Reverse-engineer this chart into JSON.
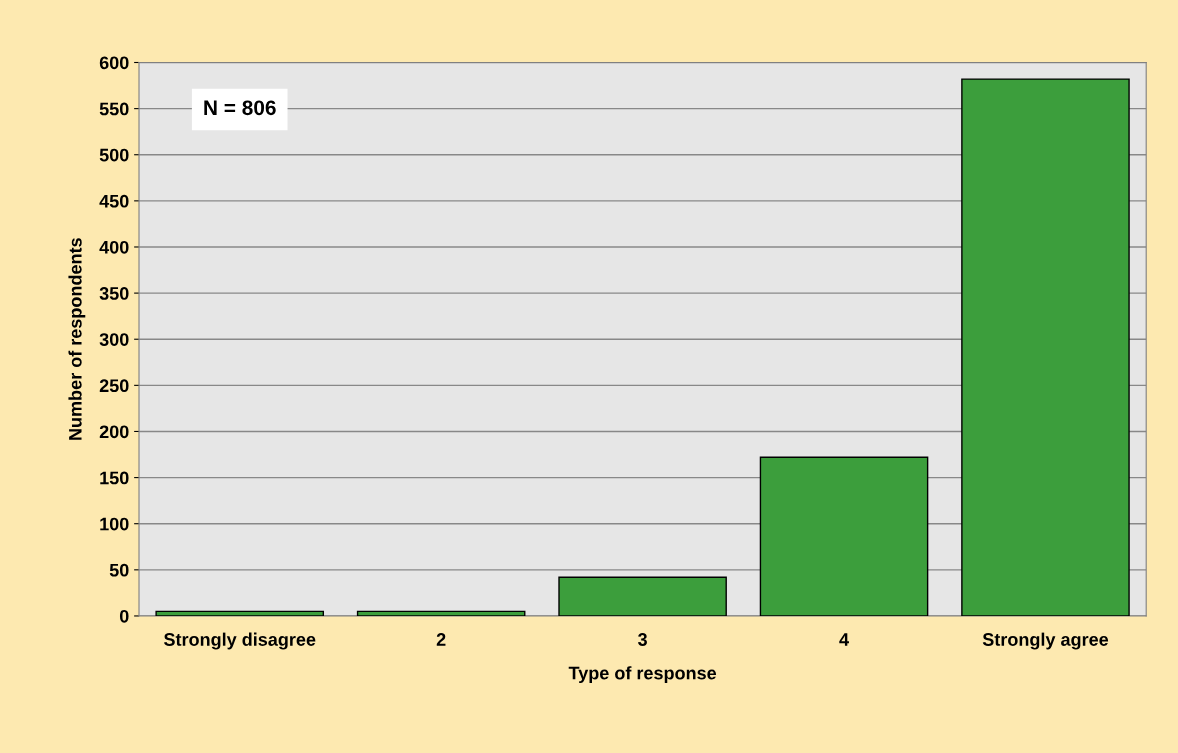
{
  "chart_data": {
    "type": "bar",
    "xlabel": "Type of response",
    "ylabel": "Number of respondents",
    "categories": [
      "Strongly disagree",
      "2",
      "3",
      "4",
      "Strongly agree"
    ],
    "values": [
      5,
      5,
      42,
      172,
      582
    ],
    "color": "#3c9e3c",
    "ylim": [
      0,
      600
    ],
    "yticks": [
      0,
      50,
      100,
      150,
      200,
      250,
      300,
      350,
      400,
      450,
      500,
      550,
      600
    ],
    "grid": "y",
    "legend": false,
    "annotations": [
      "N = 806"
    ]
  }
}
